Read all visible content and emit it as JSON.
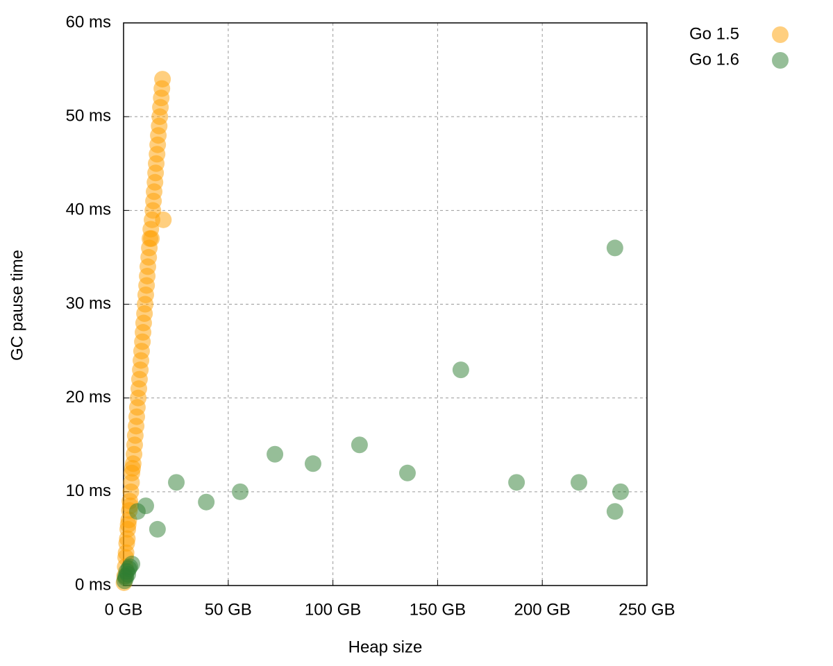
{
  "chart_data": {
    "type": "scatter",
    "x_label": "Heap size",
    "y_label": "GC pause time",
    "xlim": [
      0,
      250
    ],
    "ylim": [
      0,
      60
    ],
    "xticks": [
      {
        "value": 0,
        "label": "0 GB"
      },
      {
        "value": 50,
        "label": "50 GB"
      },
      {
        "value": 100,
        "label": "100 GB"
      },
      {
        "value": 150,
        "label": "150 GB"
      },
      {
        "value": 200,
        "label": "200 GB"
      },
      {
        "value": 250,
        "label": "250 GB"
      }
    ],
    "yticks": [
      {
        "value": 0,
        "label": "0 ms"
      },
      {
        "value": 10,
        "label": "10 ms"
      },
      {
        "value": 20,
        "label": "20 ms"
      },
      {
        "value": 30,
        "label": "30 ms"
      },
      {
        "value": 40,
        "label": "40 ms"
      },
      {
        "value": 50,
        "label": "50 ms"
      },
      {
        "value": 60,
        "label": "60 ms"
      }
    ],
    "grid": true,
    "legend": "top-right",
    "series": [
      {
        "name": "Go 1.5",
        "color": "#ffa000",
        "x": [
          0.2,
          0.5,
          0.8,
          1,
          1.2,
          1.5,
          1.8,
          2,
          2.2,
          2.5,
          2.8,
          3,
          3.2,
          3.5,
          3.8,
          4,
          4.3,
          4.6,
          5,
          5.3,
          5.6,
          6,
          6.3,
          6.6,
          7,
          7.3,
          7.6,
          8,
          8.3,
          8.6,
          9,
          9.3,
          9.6,
          10,
          10.3,
          10.6,
          11,
          11.3,
          11.6,
          12,
          12.3,
          12.6,
          13,
          13.3,
          13.6,
          14,
          14.3,
          14.6,
          15,
          15.3,
          15.6,
          16,
          16.3,
          16.6,
          17,
          17.3,
          17.6,
          18,
          18.3,
          18.6,
          19
        ],
        "values": [
          0.3,
          1,
          2,
          3,
          3.5,
          4.5,
          5,
          6,
          6.5,
          7,
          8,
          9,
          8.5,
          10,
          11,
          12,
          12.5,
          13,
          14,
          15,
          16,
          17,
          18,
          19,
          20,
          21,
          22,
          23,
          24,
          25,
          26,
          27,
          28,
          29,
          30,
          31,
          32,
          33,
          34,
          35,
          36,
          37,
          38,
          37,
          39,
          40,
          41,
          42,
          43,
          44,
          45,
          46,
          47,
          48,
          49,
          50,
          51,
          52,
          53,
          54,
          39
        ]
      },
      {
        "name": "Go 1.6",
        "color": "#2e7d32",
        "x": [
          0.5,
          1,
          1.5,
          2,
          2.5,
          3,
          1,
          4,
          6.6,
          10.6,
          16.2,
          25.2,
          39.5,
          55.7,
          72.3,
          90.5,
          112.7,
          135.6,
          161.1,
          187.7,
          217.5,
          234.7,
          234.7,
          237.4
        ],
        "values": [
          0.5,
          1,
          1.5,
          1.2,
          1.8,
          2,
          0.8,
          2.3,
          7.9,
          8.5,
          6,
          11,
          8.9,
          10,
          14,
          13,
          15,
          12,
          23,
          11,
          11,
          36,
          7.9,
          10
        ]
      }
    ]
  }
}
